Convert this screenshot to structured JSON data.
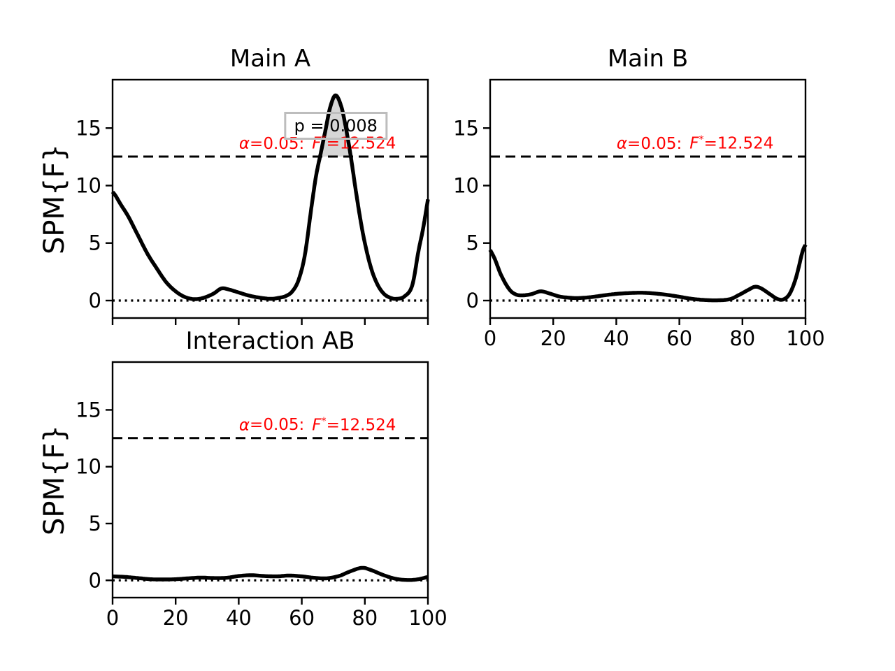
{
  "figure": {
    "background": "#ffffff"
  },
  "colors": {
    "curve": "#000000",
    "axes": "#000000",
    "threshold_text": "#ff0000",
    "cluster_fill": "#d6d6d6",
    "p_box_border": "#bdbdbd"
  },
  "ylabel_text": "SPM{F}",
  "threshold_label": {
    "alpha_sym": "α",
    "alpha_val": "=0.05:",
    "f_sym": "F",
    "star": "*",
    "value_part": "=12.524"
  },
  "chart_data": [
    {
      "id": "main_a",
      "type": "line",
      "title": "Main A",
      "ylabel": "SPM{F}",
      "xlabel": "",
      "xlim": [
        0,
        100
      ],
      "ylim": [
        -1.52,
        19.21
      ],
      "xticks": [
        0,
        20,
        40,
        60,
        80,
        100
      ],
      "show_xtick_labels": false,
      "yticks": [
        0,
        5,
        10,
        15
      ],
      "grid": false,
      "alpha": 0.05,
      "threshold": 12.524,
      "zero_line": 0,
      "threshold_label_x": 65,
      "cluster_fill": true,
      "p_value_label": {
        "text": "p = 0.008",
        "x": 70.8,
        "y": 15.2
      },
      "x": [
        0,
        1,
        2.5,
        5,
        8,
        11,
        14,
        17,
        20,
        23,
        26,
        29,
        32,
        34.5,
        37,
        40,
        43,
        46,
        50,
        53,
        55,
        57,
        59,
        61,
        63,
        64.5,
        66,
        67.5,
        69,
        70.7,
        72.5,
        74,
        75.5,
        77,
        78.5,
        80,
        82,
        84,
        86,
        88,
        90,
        92.5,
        95,
        97,
        98.5,
        100
      ],
      "y": [
        9.45,
        9.1,
        8.4,
        7.3,
        5.7,
        4.1,
        2.8,
        1.6,
        0.8,
        0.3,
        0.12,
        0.25,
        0.6,
        1.05,
        0.95,
        0.7,
        0.45,
        0.28,
        0.15,
        0.25,
        0.4,
        0.8,
        1.8,
        4.0,
        8.0,
        10.8,
        12.8,
        14.8,
        16.8,
        17.85,
        16.9,
        15.0,
        12.6,
        9.8,
        7.2,
        5.0,
        2.8,
        1.4,
        0.6,
        0.25,
        0.15,
        0.35,
        1.3,
        4.3,
        6.3,
        8.8
      ]
    },
    {
      "id": "main_b",
      "type": "line",
      "title": "Main B",
      "ylabel": "",
      "xlabel": "",
      "xlim": [
        0,
        100
      ],
      "ylim": [
        -1.52,
        19.21
      ],
      "xticks": [
        0,
        20,
        40,
        60,
        80,
        100
      ],
      "show_xtick_labels": true,
      "yticks": [
        0,
        5,
        10,
        15
      ],
      "grid": false,
      "alpha": 0.05,
      "threshold": 12.524,
      "zero_line": 0,
      "threshold_label_x": 65,
      "cluster_fill": false,
      "x": [
        0,
        1.5,
        3.5,
        6,
        8,
        10,
        13,
        16,
        19,
        22,
        25,
        28,
        32,
        36,
        40,
        44,
        48,
        52,
        56,
        60,
        64,
        68,
        72,
        76,
        79,
        82,
        84,
        86,
        89,
        91,
        93,
        95,
        97,
        99,
        100
      ],
      "y": [
        4.4,
        3.6,
        2.2,
        1.0,
        0.55,
        0.45,
        0.55,
        0.8,
        0.6,
        0.35,
        0.25,
        0.22,
        0.3,
        0.45,
        0.58,
        0.65,
        0.68,
        0.62,
        0.5,
        0.33,
        0.15,
        0.05,
        0.02,
        0.12,
        0.5,
        0.95,
        1.2,
        1.05,
        0.5,
        0.15,
        0.1,
        0.6,
        2.0,
        4.2,
        4.85
      ]
    },
    {
      "id": "interaction_ab",
      "type": "line",
      "title": "Interaction AB",
      "ylabel": "SPM{F}",
      "xlabel": "",
      "xlim": [
        0,
        100
      ],
      "ylim": [
        -1.52,
        19.21
      ],
      "xticks": [
        0,
        20,
        40,
        60,
        80,
        100
      ],
      "show_xtick_labels": true,
      "yticks": [
        0,
        5,
        10,
        15
      ],
      "grid": false,
      "alpha": 0.05,
      "threshold": 12.524,
      "zero_line": 0,
      "threshold_label_x": 65,
      "cluster_fill": false,
      "x": [
        0,
        4,
        8,
        12,
        16,
        20,
        24,
        28,
        32,
        36,
        40,
        44,
        48,
        52,
        56,
        60,
        64,
        68,
        72,
        75,
        79,
        82,
        86,
        90,
        94,
        97,
        100
      ],
      "y": [
        0.35,
        0.3,
        0.2,
        0.1,
        0.08,
        0.1,
        0.18,
        0.24,
        0.2,
        0.22,
        0.38,
        0.45,
        0.38,
        0.35,
        0.42,
        0.35,
        0.22,
        0.18,
        0.4,
        0.75,
        1.1,
        0.9,
        0.45,
        0.12,
        0.03,
        0.1,
        0.3
      ]
    }
  ]
}
